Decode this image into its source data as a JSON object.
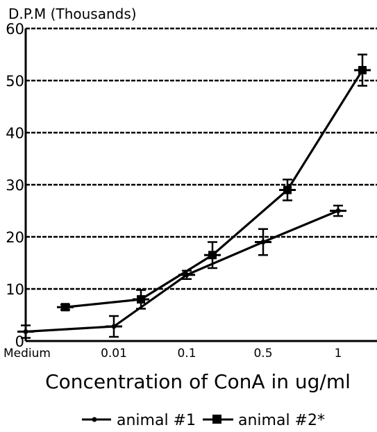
{
  "chart_data": {
    "type": "line",
    "ylabel": "D.P.M (Thousands)",
    "xlabel": "Concentration of ConA in ug/ml",
    "ylim": [
      0,
      60
    ],
    "y_ticks": [
      "0",
      "10",
      "20",
      "30",
      "40",
      "50",
      "60"
    ],
    "x_tick_labels": [
      "Medium",
      "0.01",
      "0.1",
      "0.5",
      "1"
    ],
    "grid": "horizontal dashed",
    "legend_position": "bottom",
    "series": [
      {
        "name": "animal #1",
        "marker": "dot",
        "points": [
          {
            "x": "Medium",
            "y": 1.8,
            "err": 1.2
          },
          {
            "x": "0.01",
            "y": 2.8,
            "err": 2.0
          },
          {
            "x": "0.1",
            "y": 12.7,
            "err": 0.8
          },
          {
            "x": "0.5",
            "y": 19.0,
            "err": 2.5
          },
          {
            "x": "1",
            "y": 25.0,
            "err": 1.0
          }
        ]
      },
      {
        "name": "animal #2*",
        "marker": "square",
        "points": [
          {
            "x": "between Medium and 0.01",
            "y": 6.5,
            "err": 0.5
          },
          {
            "x": "between 0.01 and 0.1",
            "y": 8.0,
            "err": 1.8
          },
          {
            "x": "between 0.1 and 0.5",
            "y": 16.5,
            "err": 2.5
          },
          {
            "x": "between 0.5 and 1",
            "y": 29.0,
            "err": 2.0
          },
          {
            "x": "above 1",
            "y": 52.0,
            "err": 3.0
          }
        ]
      }
    ]
  }
}
